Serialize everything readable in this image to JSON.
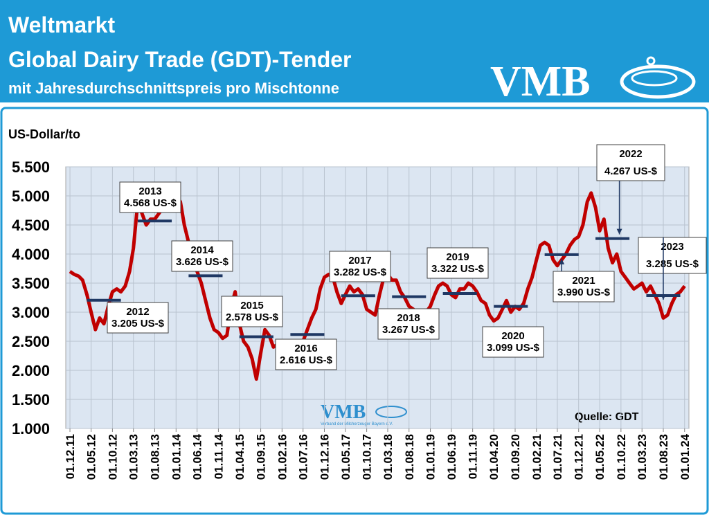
{
  "header": {
    "title": "Weltmarkt",
    "subtitle": "Global Dairy Trade (GDT)-Tender",
    "note": "mit Jahresdurchschnittspreis pro Mischtonne",
    "logo": "VMB"
  },
  "watermark": {
    "logo": "VMB",
    "org": "Verband der Milcherzeuger Bayern e.V."
  },
  "chart_data": {
    "type": "line",
    "y_label": "US-Dollar/to",
    "source": "Quelle: GDT",
    "grid": true,
    "xlim": [
      "2011-11-01",
      "2024-02-01"
    ],
    "ylim": [
      1000,
      5500
    ],
    "yticks": [
      {
        "value": 1000,
        "label": "1.000"
      },
      {
        "value": 1500,
        "label": "1.500"
      },
      {
        "value": 2000,
        "label": "2.000"
      },
      {
        "value": 2500,
        "label": "2.500"
      },
      {
        "value": 3000,
        "label": "3.000"
      },
      {
        "value": 3500,
        "label": "3.500"
      },
      {
        "value": 4000,
        "label": "4.000"
      },
      {
        "value": 4500,
        "label": "4.500"
      },
      {
        "value": 5000,
        "label": "5.000"
      },
      {
        "value": 5500,
        "label": "5.500"
      }
    ],
    "xticks": [
      {
        "value": "2011-12-01",
        "label": "01.12.11"
      },
      {
        "value": "2012-05-01",
        "label": "01.05.12"
      },
      {
        "value": "2012-10-01",
        "label": "01.10.12"
      },
      {
        "value": "2013-03-01",
        "label": "01.03.13"
      },
      {
        "value": "2013-08-01",
        "label": "01.08.13"
      },
      {
        "value": "2014-01-01",
        "label": "01.01.14"
      },
      {
        "value": "2014-06-01",
        "label": "01.06.14"
      },
      {
        "value": "2014-11-01",
        "label": "01.11.14"
      },
      {
        "value": "2015-04-01",
        "label": "01.04.15"
      },
      {
        "value": "2015-09-01",
        "label": "01.09.15"
      },
      {
        "value": "2016-02-01",
        "label": "01.02.16"
      },
      {
        "value": "2016-07-01",
        "label": "01.07.16"
      },
      {
        "value": "2016-12-01",
        "label": "01.12.16"
      },
      {
        "value": "2017-05-01",
        "label": "01.05.17"
      },
      {
        "value": "2017-10-01",
        "label": "01.10.17"
      },
      {
        "value": "2018-03-01",
        "label": "01.03.18"
      },
      {
        "value": "2018-08-01",
        "label": "01.08.18"
      },
      {
        "value": "2019-01-01",
        "label": "01.01.19"
      },
      {
        "value": "2019-06-01",
        "label": "01.06.19"
      },
      {
        "value": "2019-11-01",
        "label": "01.11.19"
      },
      {
        "value": "2020-04-01",
        "label": "01.04.20"
      },
      {
        "value": "2020-09-01",
        "label": "01.09.20"
      },
      {
        "value": "2021-02-01",
        "label": "01.02.21"
      },
      {
        "value": "2021-07-01",
        "label": "01.07.21"
      },
      {
        "value": "2021-12-01",
        "label": "01.12.21"
      },
      {
        "value": "2022-05-01",
        "label": "01.05.22"
      },
      {
        "value": "2022-10-01",
        "label": "01.10.22"
      },
      {
        "value": "2023-03-01",
        "label": "01.03.23"
      },
      {
        "value": "2023-08-01",
        "label": "01.08.23"
      },
      {
        "value": "2024-01-01",
        "label": "01.01.24"
      }
    ],
    "x": [
      "2011-12-01",
      "2012-01-01",
      "2012-02-01",
      "2012-03-01",
      "2012-04-01",
      "2012-05-01",
      "2012-06-01",
      "2012-07-01",
      "2012-08-01",
      "2012-09-01",
      "2012-10-01",
      "2012-11-01",
      "2012-12-01",
      "2013-01-01",
      "2013-02-01",
      "2013-03-01",
      "2013-04-01",
      "2013-05-01",
      "2013-06-01",
      "2013-07-01",
      "2013-08-01",
      "2013-09-01",
      "2013-10-01",
      "2013-11-01",
      "2013-12-01",
      "2014-01-01",
      "2014-02-01",
      "2014-03-01",
      "2014-04-01",
      "2014-05-01",
      "2014-06-01",
      "2014-07-01",
      "2014-08-01",
      "2014-09-01",
      "2014-10-01",
      "2014-11-01",
      "2014-12-01",
      "2015-01-01",
      "2015-02-01",
      "2015-03-01",
      "2015-04-01",
      "2015-05-01",
      "2015-06-01",
      "2015-07-01",
      "2015-08-01",
      "2015-09-01",
      "2015-10-01",
      "2015-11-01",
      "2015-12-01",
      "2016-01-01",
      "2016-02-01",
      "2016-03-01",
      "2016-04-01",
      "2016-05-01",
      "2016-06-01",
      "2016-07-01",
      "2016-08-01",
      "2016-09-01",
      "2016-10-01",
      "2016-11-01",
      "2016-12-01",
      "2017-01-01",
      "2017-02-01",
      "2017-03-01",
      "2017-04-01",
      "2017-05-01",
      "2017-06-01",
      "2017-07-01",
      "2017-08-01",
      "2017-09-01",
      "2017-10-01",
      "2017-11-01",
      "2017-12-01",
      "2018-01-01",
      "2018-02-01",
      "2018-03-01",
      "2018-04-01",
      "2018-05-01",
      "2018-06-01",
      "2018-07-01",
      "2018-08-01",
      "2018-09-01",
      "2018-10-01",
      "2018-11-01",
      "2018-12-01",
      "2019-01-01",
      "2019-02-01",
      "2019-03-01",
      "2019-04-01",
      "2019-05-01",
      "2019-06-01",
      "2019-07-01",
      "2019-08-01",
      "2019-09-01",
      "2019-10-01",
      "2019-11-01",
      "2019-12-01",
      "2020-01-01",
      "2020-02-01",
      "2020-03-01",
      "2020-04-01",
      "2020-05-01",
      "2020-06-01",
      "2020-07-01",
      "2020-08-01",
      "2020-09-01",
      "2020-10-01",
      "2020-11-01",
      "2020-12-01",
      "2021-01-01",
      "2021-02-01",
      "2021-03-01",
      "2021-04-01",
      "2021-05-01",
      "2021-06-01",
      "2021-07-01",
      "2021-08-01",
      "2021-09-01",
      "2021-10-01",
      "2021-11-01",
      "2021-12-01",
      "2022-01-01",
      "2022-02-01",
      "2022-03-01",
      "2022-04-01",
      "2022-05-01",
      "2022-06-01",
      "2022-07-01",
      "2022-08-01",
      "2022-09-01",
      "2022-10-01",
      "2022-11-01",
      "2022-12-01",
      "2023-01-01",
      "2023-02-01",
      "2023-03-01",
      "2023-04-01",
      "2023-05-01",
      "2023-06-01",
      "2023-07-01",
      "2023-08-01",
      "2023-09-01",
      "2023-10-01",
      "2023-11-01",
      "2023-12-01",
      "2024-01-01"
    ],
    "series": [
      {
        "color": "#c00000",
        "values": [
          3700,
          3650,
          3620,
          3550,
          3300,
          3000,
          2700,
          2900,
          2800,
          3100,
          3350,
          3400,
          3350,
          3450,
          3700,
          4100,
          4900,
          4700,
          4500,
          4600,
          4600,
          4700,
          4800,
          4900,
          4950,
          5000,
          4900,
          4500,
          4200,
          3900,
          3700,
          3500,
          3200,
          2900,
          2700,
          2650,
          2550,
          2600,
          3100,
          3350,
          2800,
          2500,
          2400,
          2200,
          1850,
          2300,
          2700,
          2600,
          2400,
          2450,
          2450,
          2400,
          2450,
          2400,
          2500,
          2500,
          2700,
          2900,
          3050,
          3400,
          3600,
          3650,
          3600,
          3350,
          3150,
          3300,
          3450,
          3350,
          3400,
          3300,
          3050,
          3000,
          2950,
          3300,
          3600,
          3650,
          3550,
          3550,
          3350,
          3250,
          3100,
          3050,
          2950,
          2900,
          3000,
          3100,
          3300,
          3450,
          3500,
          3450,
          3300,
          3250,
          3400,
          3400,
          3500,
          3450,
          3350,
          3200,
          3150,
          2950,
          2850,
          2900,
          3050,
          3200,
          3000,
          3100,
          3050,
          3150,
          3400,
          3600,
          3900,
          4150,
          4200,
          4150,
          3900,
          3800,
          3900,
          4000,
          4150,
          4250,
          4300,
          4500,
          4900,
          5050,
          4800,
          4400,
          4600,
          4100,
          3850,
          4000,
          3700,
          3600,
          3500,
          3400,
          3450,
          3500,
          3350,
          3450,
          3300,
          3150,
          2900,
          2950,
          3150,
          3300,
          3350,
          3450
        ]
      }
    ],
    "annual_averages": {
      "color": "#1f3864",
      "categories": [
        "2012",
        "2013",
        "2014",
        "2015",
        "2016",
        "2017",
        "2018",
        "2019",
        "2020",
        "2021",
        "2022",
        "2023"
      ],
      "values": [
        3205,
        4568,
        3626,
        2578,
        2616,
        3282,
        3267,
        3322,
        3099,
        3990,
        4267,
        3285
      ],
      "value_labels": [
        "3.205 US-$",
        "4.568 US-$",
        "3.626 US-$",
        "2.578 US-$",
        "2.616 US-$",
        "3.282 US-$",
        "3.267 US-$",
        "3.322 US-$",
        "3.099 US-$",
        "3.990 US-$",
        "4.267 US-$",
        "3.285 US-$"
      ]
    }
  }
}
